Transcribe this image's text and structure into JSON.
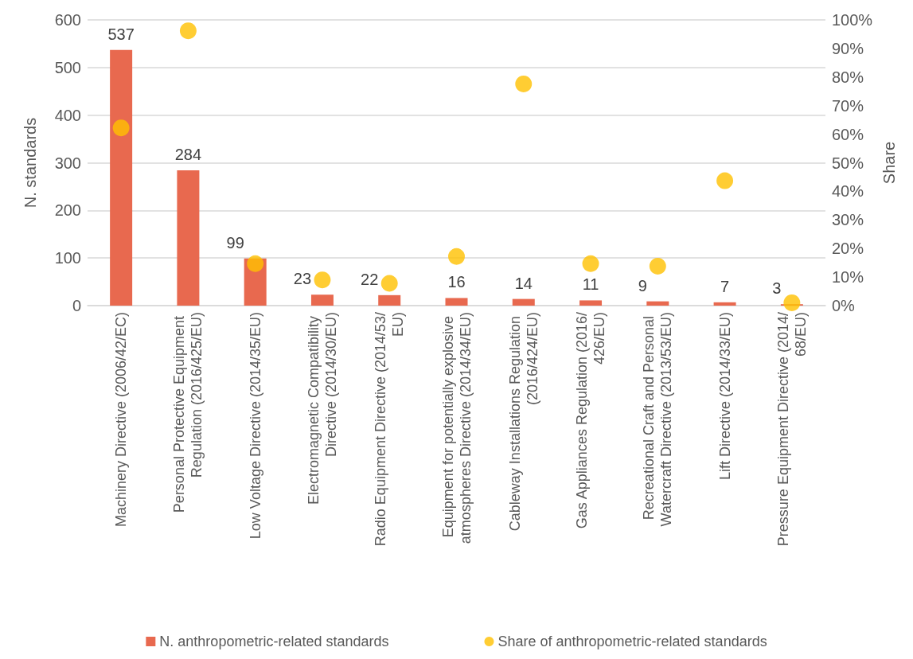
{
  "chart_data": {
    "type": "bar",
    "categories": [
      "Machinery Directive (2006/42/EC)",
      "Personal Protective Equipment Regulation (2016/425/EU)",
      "Low Voltage Directive (2014/35/EU)",
      "Electromagnetic Compatibility Directive (2014/30/EU)",
      "Radio Equipment Directive (2014/53/EU)",
      "Equipment for potentially explosive atmospheres Directive (2014/34/EU)",
      "Cableway Installations Regulation (2016/424/EU)",
      "Gas Appliances Regulation (2016/426/EU)",
      "Recreational Craft and Personal Watercraft Directive (2013/53/EU)",
      "Lift Directive (2014/33/EU)",
      "Pressure Equipment Directive (2014/68/EU)"
    ],
    "series": [
      {
        "name": "N. anthropometric-related standards",
        "type": "bar",
        "color": "#e8694f",
        "values": [
          537,
          284,
          99,
          23,
          22,
          16,
          14,
          11,
          9,
          7,
          3
        ],
        "data_labels": true
      },
      {
        "name": "Share of anthropometric-related standards",
        "type": "scatter",
        "axis": "y2",
        "color": "#ffc000",
        "marker": "circle",
        "values": [
          62.2,
          96.2,
          14.7,
          9.0,
          7.8,
          17.2,
          77.6,
          14.7,
          13.8,
          43.7,
          1.0
        ]
      }
    ],
    "ylabel": "N. standards",
    "y2label": "Share",
    "ylim": [
      0,
      600
    ],
    "yticks": [
      0,
      100,
      200,
      300,
      400,
      500,
      600
    ],
    "y2lim": [
      0,
      100
    ],
    "y2ticks": [
      {
        "value": 0,
        "label": "0%"
      },
      {
        "value": 10,
        "label": "10%"
      },
      {
        "value": 20,
        "label": "20%"
      },
      {
        "value": 30,
        "label": "30%"
      },
      {
        "value": 40,
        "label": "40%"
      },
      {
        "value": 50,
        "label": "50%"
      },
      {
        "value": 60,
        "label": "60%"
      },
      {
        "value": 70,
        "label": "70%"
      },
      {
        "value": 80,
        "label": "80%"
      },
      {
        "value": 90,
        "label": "90%"
      },
      {
        "value": 100,
        "label": "100%"
      }
    ],
    "grid": "y",
    "legend": "bottom"
  }
}
